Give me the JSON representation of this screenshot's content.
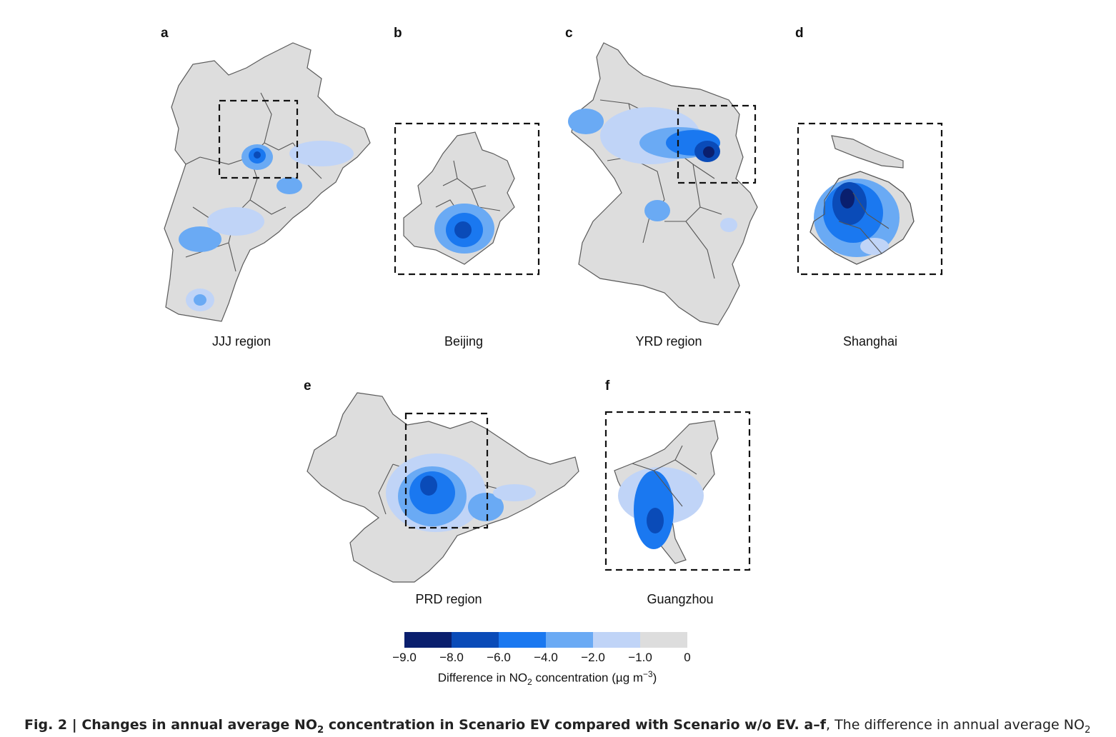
{
  "panels": {
    "a": {
      "letter": "a",
      "caption": "JJJ region"
    },
    "b": {
      "letter": "b",
      "caption": "Beijing"
    },
    "c": {
      "letter": "c",
      "caption": "YRD region"
    },
    "d": {
      "letter": "d",
      "caption": "Shanghai"
    },
    "e": {
      "letter": "e",
      "caption": "PRD region"
    },
    "f": {
      "letter": "f",
      "caption": "Guangzhou"
    }
  },
  "legend": {
    "ticks": [
      "−9.0",
      "−8.0",
      "−6.0",
      "−4.0",
      "−2.0",
      "−1.0",
      "0"
    ],
    "colors": [
      "#0a1f6e",
      "#0a4bb8",
      "#1a78f0",
      "#6aaaf4",
      "#c0d4f7",
      "#dddddd"
    ],
    "title_pre": "Difference in NO",
    "title_sub": "2",
    "title_post": " concentration (µg m",
    "title_sup": "−3",
    "title_end": ")"
  },
  "caption": {
    "fig_label": "Fig. 2 | Changes in annual average NO",
    "fig_label_sub": "2",
    "fig_label_rest": " concentration in Scenario EV compared with Scenario w/o EV. a–f",
    "text": ", The difference in annual average NO",
    "text_sub": "2"
  }
}
